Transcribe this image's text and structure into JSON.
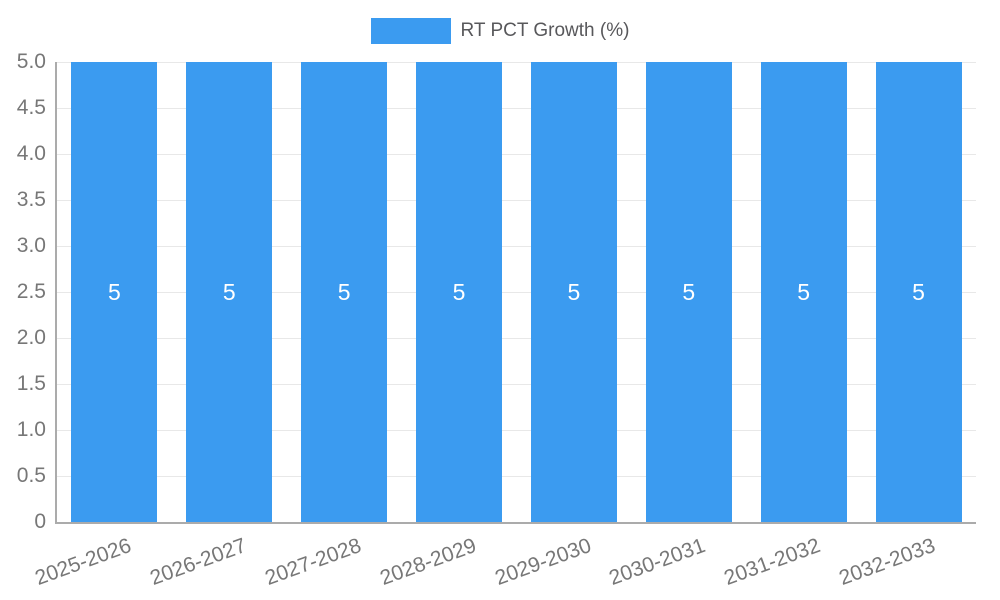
{
  "chart_data": {
    "type": "bar",
    "title": "",
    "legend": {
      "label": "RT PCT Growth (%)",
      "position": "top"
    },
    "categories": [
      "2025-2026",
      "2026-2027",
      "2027-2028",
      "2028-2029",
      "2029-2030",
      "2030-2031",
      "2031-2032",
      "2032-2033"
    ],
    "series": [
      {
        "name": "RT PCT Growth (%)",
        "values": [
          5,
          5,
          5,
          5,
          5,
          5,
          5,
          5
        ]
      }
    ],
    "bar_labels": [
      "5",
      "5",
      "5",
      "5",
      "5",
      "5",
      "5",
      "5"
    ],
    "xlabel": "",
    "ylabel": "",
    "ylim": [
      0,
      5
    ],
    "yticks": [
      "0",
      "0.5",
      "1.0",
      "1.5",
      "2.0",
      "2.5",
      "3.0",
      "3.5",
      "4.0",
      "4.5",
      "5.0"
    ],
    "grid": true,
    "legend_position": "top",
    "colors": {
      "bar": "#3b9bf0",
      "bar_label": "#ffffff",
      "axis": "#ababab",
      "grid": "#e8e8e8",
      "tick_text": "#777777",
      "legend_text": "#58585b"
    }
  }
}
